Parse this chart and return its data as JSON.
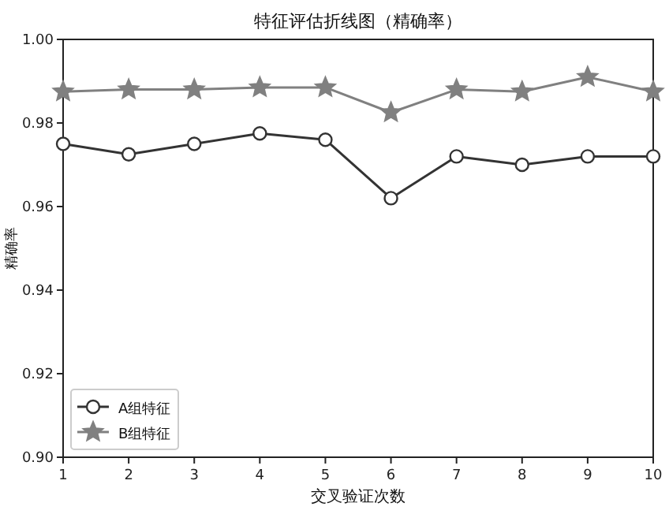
{
  "chart_data": {
    "type": "line",
    "title": "特征评估折线图（精确率）",
    "xlabel": "交叉验证次数",
    "ylabel": "精确率",
    "x": [
      1,
      2,
      3,
      4,
      5,
      6,
      7,
      8,
      9,
      10
    ],
    "series": [
      {
        "name": "A组特征",
        "color": "#333333",
        "marker": "circle",
        "values": [
          0.975,
          0.9725,
          0.975,
          0.9775,
          0.976,
          0.962,
          0.972,
          0.97,
          0.972,
          0.972
        ]
      },
      {
        "name": "B组特征",
        "color": "#808080",
        "marker": "star",
        "values": [
          0.9875,
          0.988,
          0.988,
          0.9885,
          0.9885,
          0.9825,
          0.988,
          0.9875,
          0.991,
          0.9875
        ]
      }
    ],
    "xlim": [
      1,
      10
    ],
    "xticks": [
      1,
      2,
      3,
      4,
      5,
      6,
      7,
      8,
      9,
      10
    ],
    "ylim": [
      0.9,
      1.0
    ],
    "yticks": [
      {
        "value": 0.9,
        "label": "0.90"
      },
      {
        "value": 0.92,
        "label": "0.92"
      },
      {
        "value": 0.94,
        "label": "0.94"
      },
      {
        "value": 0.96,
        "label": "0.96"
      },
      {
        "value": 0.98,
        "label": "0.98"
      },
      {
        "value": 1.0,
        "label": "1.00"
      }
    ],
    "grid": false,
    "legend": "bottom left",
    "line_style": "solid"
  }
}
